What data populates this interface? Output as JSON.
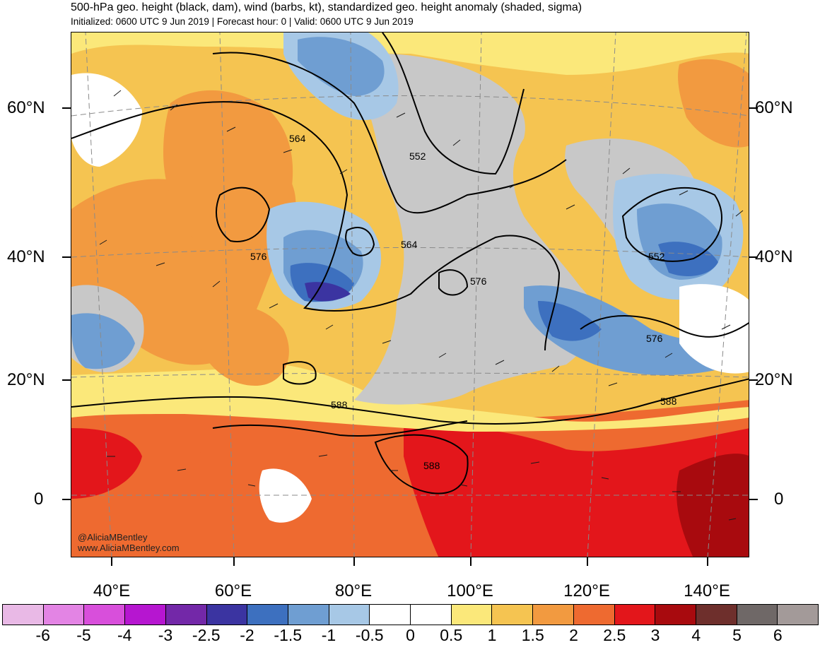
{
  "header": {
    "title": "500-hPa geo. height (black, dam), wind (barbs, kt), standardized geo. height anomaly (shaded, sigma)",
    "subtitle": "Initialized: 0600 UTC 9 Jun 2019 | Forecast hour: 0 | Valid: 0600 UTC 9 Jun 2019"
  },
  "axes": {
    "lat_left": [
      "60°N",
      "40°N",
      "20°N",
      "0"
    ],
    "lat_right": [
      "60°N",
      "40°N",
      "20°N",
      "0"
    ],
    "lon": [
      "40°E",
      "60°E",
      "80°E",
      "100°E",
      "120°E",
      "140°E"
    ]
  },
  "contour_labels": [
    "564",
    "552",
    "576",
    "564",
    "576",
    "552",
    "576",
    "588",
    "588",
    "588"
  ],
  "credit": {
    "handle": "@AliciaMBentley",
    "site": "www.AliciaMBentley.com"
  },
  "colorbar": {
    "labels": [
      "-6",
      "-5",
      "-4",
      "-3",
      "-2.5",
      "-2",
      "-1.5",
      "-1",
      "-0.5",
      "0",
      "0.5",
      "1",
      "1.5",
      "2",
      "2.5",
      "3",
      "4",
      "5",
      "6"
    ],
    "colors": [
      "#e9b9e6",
      "#e384e4",
      "#d84fdb",
      "#b616d0",
      "#7328a8",
      "#3b34a1",
      "#3d70bf",
      "#6f9ed2",
      "#a7c8e6",
      "#ffffff",
      "#ffffff",
      "#fbe87a",
      "#f5c451",
      "#f29a40",
      "#ee6a30",
      "#e3161b",
      "#a80a0e",
      "#6e2f2c",
      "#6f6867",
      "#a39a99"
    ]
  }
}
